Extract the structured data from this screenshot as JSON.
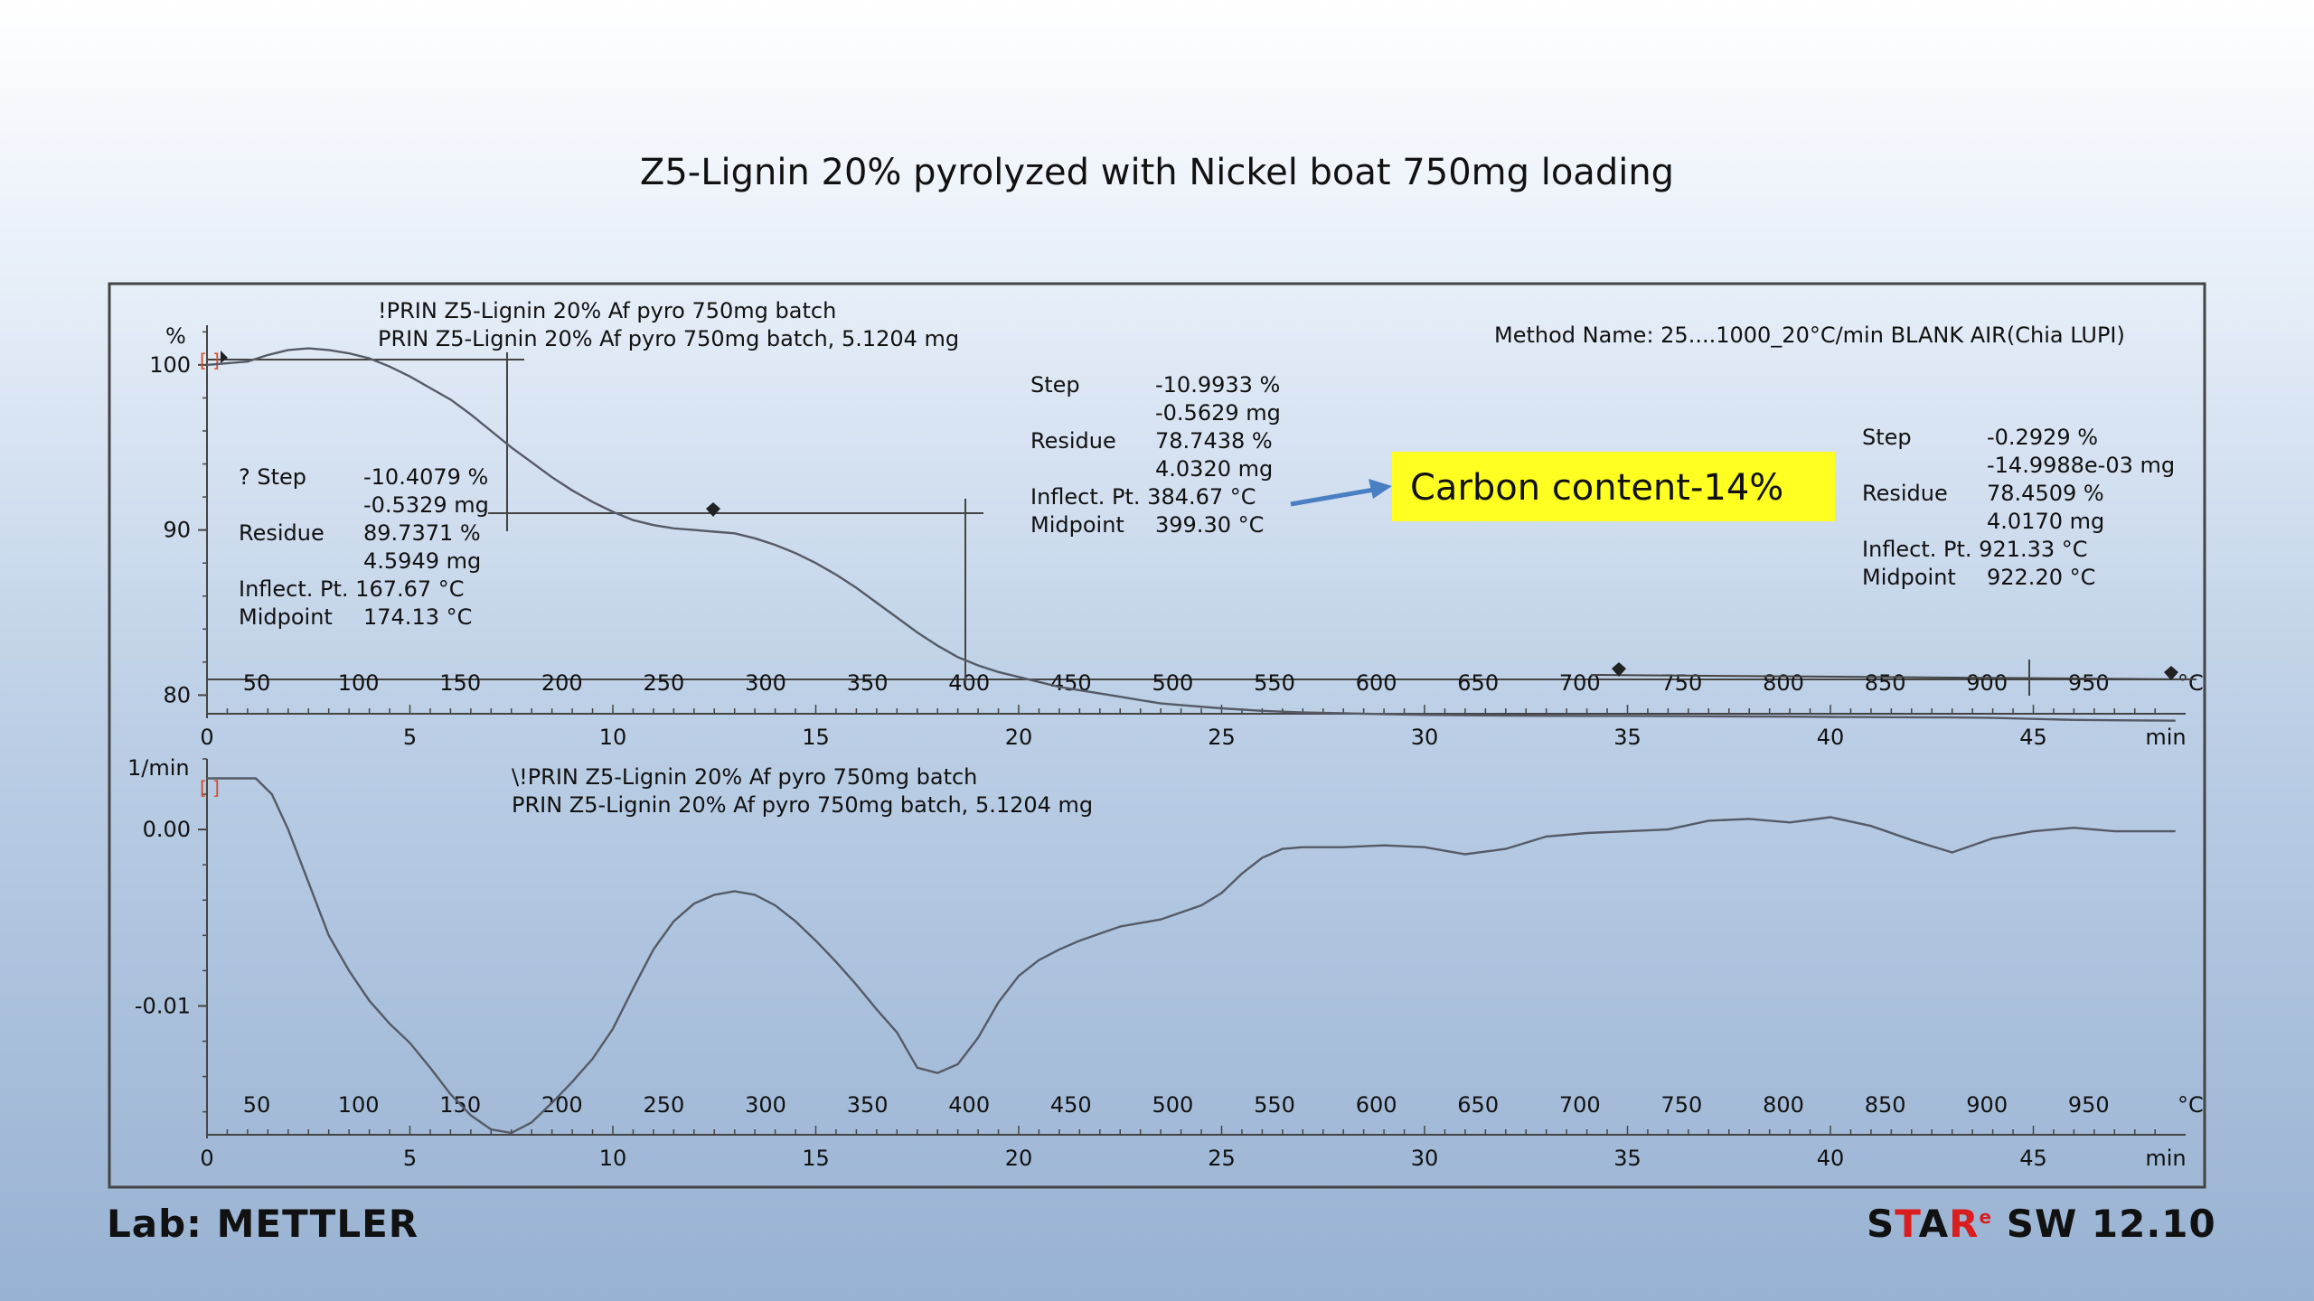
{
  "slide": {
    "title": "Z5-Lignin 20% pyrolyzed with Nickel boat 750mg loading",
    "lab_label": "Lab: METTLER",
    "brand": {
      "star": "STAR",
      "mark": "e",
      "rest": " SW 12.10"
    }
  },
  "colors": {
    "curve": "#555a66",
    "highlight": "#ffff22",
    "arrow": "#4a7fc4",
    "frame": "#444444",
    "brand_red": "#d81e1e"
  },
  "top_plot": {
    "curve_name_1": "!PRIN Z5-Lignin 20% Af pyro 750mg batch",
    "curve_name_2": "PRIN Z5-Lignin 20% Af pyro 750mg batch, 5.1204 mg",
    "method": "Method Name: 25....1000_20°C/min BLANK AIR(Chia LUPI)",
    "step1": {
      "step_label": "? Step",
      "step_pct": "-10.4079 %",
      "step_mg": "-0.5329 mg",
      "residue_label": "Residue",
      "residue_pct": "89.7371 %",
      "residue_mg": "4.5949 mg",
      "inflect": "Inflect. Pt. 167.67 °C",
      "midpoint_label": "Midpoint",
      "midpoint": "174.13 °C"
    },
    "step2": {
      "step_label": "Step",
      "step_pct": "-10.9933 %",
      "step_mg": "-0.5629 mg",
      "residue_label": "Residue",
      "residue_pct": "78.7438 %",
      "residue_mg": "4.0320 mg",
      "inflect": "Inflect. Pt. 384.67 °C",
      "midpoint_label": "Midpoint",
      "midpoint": "399.30 °C"
    },
    "step3": {
      "step_label": "Step",
      "step_pct": "-0.2929 %",
      "step_mg": "-14.9988e-03 mg",
      "residue_label": "Residue",
      "residue_pct": "78.4509 %",
      "residue_mg": "4.0170 mg",
      "inflect": "Inflect. Pt. 921.33 °C",
      "midpoint_label": "Midpoint",
      "midpoint": "922.20 °C"
    },
    "highlight": "Carbon content-14%"
  },
  "bottom_plot": {
    "curve_name_1": "\\!PRIN Z5-Lignin 20% Af pyro 750mg batch",
    "curve_name_2": "PRIN Z5-Lignin 20% Af pyro 750mg batch, 5.1204 mg"
  },
  "chart_data": [
    {
      "type": "line",
      "ylabel": "%",
      "yticks": [
        "100",
        "90",
        "80"
      ],
      "ylim": [
        78.6,
        102.4
      ],
      "temp_ticks": [
        "50",
        "100",
        "150",
        "200",
        "250",
        "300",
        "350",
        "400",
        "450",
        "500",
        "550",
        "600",
        "650",
        "700",
        "750",
        "800",
        "850",
        "900",
        "950",
        "°C"
      ],
      "time_ticks": [
        "0",
        "5",
        "10",
        "15",
        "20",
        "25",
        "30",
        "35",
        "40",
        "45",
        "min"
      ],
      "xlim_min": [
        0,
        48.5
      ],
      "series": [
        {
          "x": [
            0,
            1,
            1.5,
            2,
            2.5,
            3,
            3.5,
            4,
            4.5,
            5,
            5.5,
            6,
            6.5,
            7,
            7.5,
            8,
            8.5,
            9,
            9.5,
            10,
            10.5,
            11,
            11.5,
            12,
            12.5,
            13,
            13.5,
            14,
            14.5,
            15,
            15.5,
            16,
            16.5,
            17,
            17.5,
            18,
            18.5,
            19,
            19.5,
            20,
            20.5,
            21,
            21.5,
            22,
            22.5,
            23,
            23.5,
            24,
            25,
            26,
            27,
            28,
            29,
            30,
            31,
            32,
            33,
            34,
            35,
            36,
            37,
            38,
            39,
            40,
            41,
            42,
            43,
            44,
            45,
            46,
            47,
            48.5
          ],
          "y": [
            100.0,
            100.2,
            100.6,
            100.9,
            101.0,
            100.9,
            100.7,
            100.4,
            99.9,
            99.3,
            98.6,
            97.9,
            97.0,
            96.0,
            95.0,
            94.1,
            93.2,
            92.4,
            91.7,
            91.1,
            90.6,
            90.3,
            90.1,
            90.0,
            89.9,
            89.8,
            89.5,
            89.1,
            88.6,
            88.0,
            87.3,
            86.5,
            85.6,
            84.7,
            83.8,
            83.0,
            82.3,
            81.8,
            81.4,
            81.1,
            80.8,
            80.5,
            80.3,
            80.1,
            79.9,
            79.7,
            79.5,
            79.4,
            79.2,
            79.05,
            78.95,
            78.9,
            78.85,
            78.8,
            78.78,
            78.76,
            78.75,
            78.74,
            78.74,
            78.73,
            78.72,
            78.71,
            78.7,
            78.68,
            78.67,
            78.66,
            78.65,
            78.62,
            78.56,
            78.5,
            78.48,
            78.45
          ]
        }
      ]
    },
    {
      "type": "line",
      "ylabel": "1/min",
      "yticks": [
        "0.00",
        "-0.01"
      ],
      "ylim": [
        -0.0173,
        0.004
      ],
      "temp_ticks": [
        "50",
        "100",
        "150",
        "200",
        "250",
        "300",
        "350",
        "400",
        "450",
        "500",
        "550",
        "600",
        "650",
        "700",
        "750",
        "800",
        "850",
        "900",
        "950",
        "°C"
      ],
      "time_ticks": [
        "0",
        "5",
        "10",
        "15",
        "20",
        "25",
        "30",
        "35",
        "40",
        "45",
        "min"
      ],
      "xlim_min": [
        0,
        48.5
      ],
      "series": [
        {
          "x": [
            0,
            1.2,
            1.6,
            2,
            2.5,
            3,
            3.5,
            4,
            4.5,
            5,
            5.5,
            6,
            6.5,
            7,
            7.5,
            8,
            8.5,
            9,
            9.5,
            10,
            10.5,
            11,
            11.5,
            12,
            12.5,
            13,
            13.5,
            14,
            14.5,
            15,
            15.5,
            16,
            16.5,
            17,
            17.5,
            18,
            18.5,
            19,
            19.5,
            20,
            20.5,
            21,
            21.5,
            22,
            22.5,
            23,
            23.5,
            24,
            24.5,
            25,
            25.5,
            26,
            26.5,
            27,
            28,
            29,
            30,
            31,
            32,
            33,
            34,
            35,
            36,
            37,
            38,
            39,
            40,
            41,
            42,
            43,
            44,
            45,
            46,
            47,
            48.5
          ],
          "y": [
            0.0029,
            0.0029,
            0.002,
            0.0,
            -0.003,
            -0.006,
            -0.008,
            -0.0097,
            -0.011,
            -0.0121,
            -0.0135,
            -0.015,
            -0.0162,
            -0.017,
            -0.0172,
            -0.0166,
            -0.0155,
            -0.0143,
            -0.013,
            -0.0113,
            -0.009,
            -0.0068,
            -0.0052,
            -0.0042,
            -0.0037,
            -0.0035,
            -0.0037,
            -0.0043,
            -0.0052,
            -0.0063,
            -0.0075,
            -0.0088,
            -0.0102,
            -0.0115,
            -0.0135,
            -0.0138,
            -0.0133,
            -0.0118,
            -0.0098,
            -0.0083,
            -0.0074,
            -0.0068,
            -0.0063,
            -0.0059,
            -0.0055,
            -0.0053,
            -0.0051,
            -0.0047,
            -0.0043,
            -0.0036,
            -0.0025,
            -0.0016,
            -0.0011,
            -0.001,
            -0.001,
            -0.0009,
            -0.001,
            -0.0014,
            -0.0011,
            -0.0004,
            -0.0002,
            -0.0001,
            0.0,
            0.0005,
            0.0006,
            0.0004,
            0.0007,
            0.0002,
            -0.0006,
            -0.0013,
            -0.0005,
            -0.0001,
            0.0001,
            -0.0001,
            -0.0001
          ]
        }
      ]
    }
  ]
}
